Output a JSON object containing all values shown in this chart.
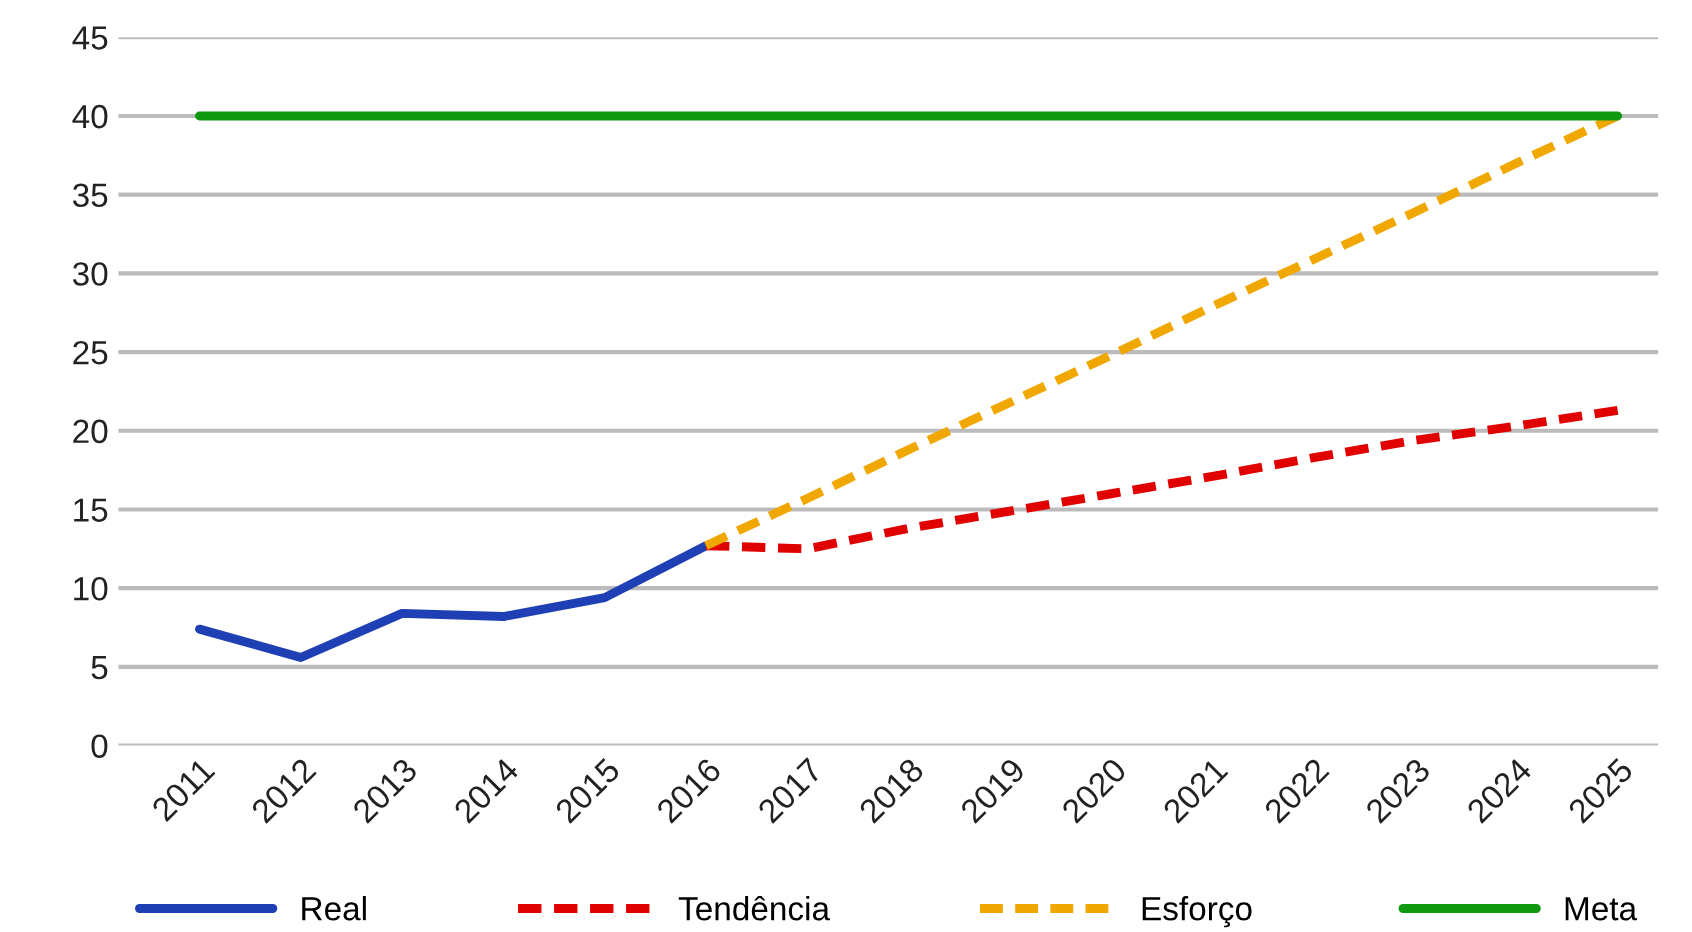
{
  "chart_data": {
    "type": "line",
    "categories": [
      "2011",
      "2012",
      "2013",
      "2014",
      "2015",
      "2016",
      "2017",
      "2018",
      "2019",
      "2020",
      "2021",
      "2022",
      "2023",
      "2024",
      "2025"
    ],
    "series": [
      {
        "name": "Real",
        "color": "#1f3fb4",
        "line_style": "solid",
        "values": [
          7.4,
          5.6,
          8.4,
          8.2,
          9.4,
          12.7,
          null,
          null,
          null,
          null,
          null,
          null,
          null,
          null,
          null
        ]
      },
      {
        "name": "Tendência",
        "color": "#e00000",
        "line_style": "dashed",
        "values": [
          null,
          null,
          null,
          null,
          null,
          12.7,
          12.5,
          13.8,
          14.9,
          16.0,
          17.1,
          18.3,
          19.4,
          20.3,
          21.3
        ]
      },
      {
        "name": "Esforço",
        "color": "#f0a800",
        "line_style": "dashed",
        "values": [
          null,
          null,
          null,
          null,
          null,
          12.7,
          15.7,
          18.8,
          21.8,
          24.8,
          27.9,
          30.9,
          33.9,
          37.0,
          40.0
        ]
      },
      {
        "name": "Meta",
        "color": "#129912",
        "line_style": "solid",
        "values": [
          40,
          40,
          40,
          40,
          40,
          40,
          40,
          40,
          40,
          40,
          40,
          40,
          40,
          40,
          40
        ]
      }
    ],
    "ylim": [
      0,
      45
    ],
    "yticks": [
      0,
      5,
      10,
      15,
      20,
      25,
      30,
      35,
      40,
      45
    ],
    "grid": "y",
    "legend": "bottom",
    "marker": "none"
  }
}
